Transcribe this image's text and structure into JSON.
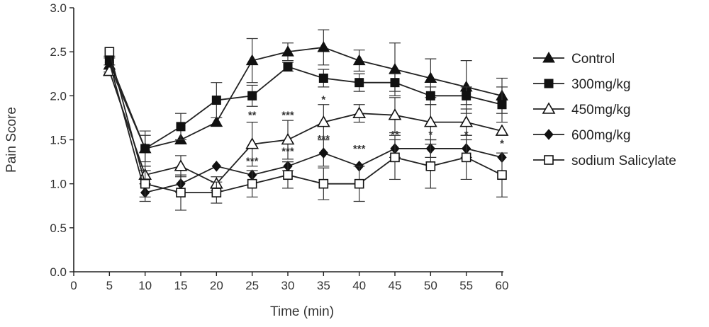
{
  "chart_data": {
    "type": "line",
    "title": "",
    "xlabel": "Time (min)",
    "ylabel": "Pain Score",
    "xlim": [
      0,
      60
    ],
    "ylim": [
      0.0,
      3.0
    ],
    "x_ticks": [
      0,
      5,
      10,
      15,
      20,
      25,
      30,
      35,
      40,
      45,
      50,
      55,
      60
    ],
    "x_tick_labels": [
      "0",
      "5",
      "10",
      "15",
      "20",
      "25",
      "30",
      "35",
      "40",
      "45",
      "50",
      "55",
      "60"
    ],
    "y_ticks": [
      0.0,
      0.5,
      1.0,
      1.5,
      2.0,
      2.5,
      3.0
    ],
    "y_tick_labels": [
      "0.0",
      "0.5",
      "1.0",
      "1.5",
      "2.0",
      "2.5",
      "3.0"
    ],
    "grid": false,
    "legend_position": "right",
    "x": [
      5,
      10,
      15,
      20,
      25,
      30,
      35,
      40,
      45,
      50,
      55,
      60
    ],
    "series": [
      {
        "name": "Control",
        "marker": "filled-triangle",
        "values": [
          2.35,
          1.4,
          1.5,
          1.7,
          2.4,
          2.5,
          2.55,
          2.4,
          2.3,
          2.2,
          2.1,
          2.0
        ],
        "errors": [
          0.08,
          0.2,
          0.0,
          0.0,
          0.25,
          0.1,
          0.2,
          0.12,
          0.3,
          0.22,
          0.3,
          0.2
        ]
      },
      {
        "name": "300mg/kg",
        "marker": "filled-square",
        "values": [
          2.4,
          1.4,
          1.65,
          1.95,
          2.0,
          2.33,
          2.2,
          2.15,
          2.15,
          2.0,
          2.0,
          1.9
        ],
        "errors": [
          0.05,
          0.15,
          0.15,
          0.2,
          0.12,
          0.05,
          0.1,
          0.1,
          0.1,
          0.1,
          0.1,
          0.2
        ]
      },
      {
        "name": "450mg/kg",
        "marker": "open-triangle",
        "values": [
          2.28,
          1.1,
          1.2,
          1.0,
          1.45,
          1.5,
          1.7,
          1.8,
          1.78,
          1.7,
          1.7,
          1.6
        ],
        "errors": [
          0.0,
          0.1,
          0.12,
          0.08,
          0.25,
          0.22,
          0.2,
          0.1,
          0.2,
          0.2,
          0.15,
          0.0
        ]
      },
      {
        "name": "600mg/kg",
        "marker": "filled-diamond",
        "values": [
          2.38,
          0.9,
          1.0,
          1.2,
          1.1,
          1.2,
          1.35,
          1.2,
          1.4,
          1.4,
          1.4,
          1.3
        ],
        "errors": [
          0.0,
          0.1,
          0.1,
          0.0,
          0.0,
          0.05,
          0.15,
          0.0,
          0.1,
          0.1,
          0.1,
          0.0
        ]
      },
      {
        "name": "sodium Salicylate",
        "marker": "open-square",
        "values": [
          2.5,
          1.0,
          0.9,
          0.9,
          1.0,
          1.1,
          1.0,
          1.0,
          1.3,
          1.2,
          1.3,
          1.1
        ],
        "errors": [
          0.0,
          0.15,
          0.2,
          0.12,
          0.15,
          0.15,
          0.18,
          0.2,
          0.25,
          0.25,
          0.25,
          0.25
        ]
      }
    ],
    "annotations": [
      {
        "x": 25,
        "y": 1.74,
        "text": "**"
      },
      {
        "x": 30,
        "y": 1.74,
        "text": "***"
      },
      {
        "x": 35,
        "y": 1.92,
        "text": "*"
      },
      {
        "x": 25,
        "y": 1.22,
        "text": "***"
      },
      {
        "x": 30,
        "y": 1.33,
        "text": "***"
      },
      {
        "x": 35,
        "y": 1.47,
        "text": "***"
      },
      {
        "x": 40,
        "y": 1.36,
        "text": "***"
      },
      {
        "x": 45,
        "y": 1.52,
        "text": "**"
      },
      {
        "x": 50,
        "y": 1.52,
        "text": "*"
      },
      {
        "x": 55,
        "y": 1.52,
        "text": "*"
      },
      {
        "x": 60,
        "y": 1.42,
        "text": "*"
      }
    ]
  }
}
